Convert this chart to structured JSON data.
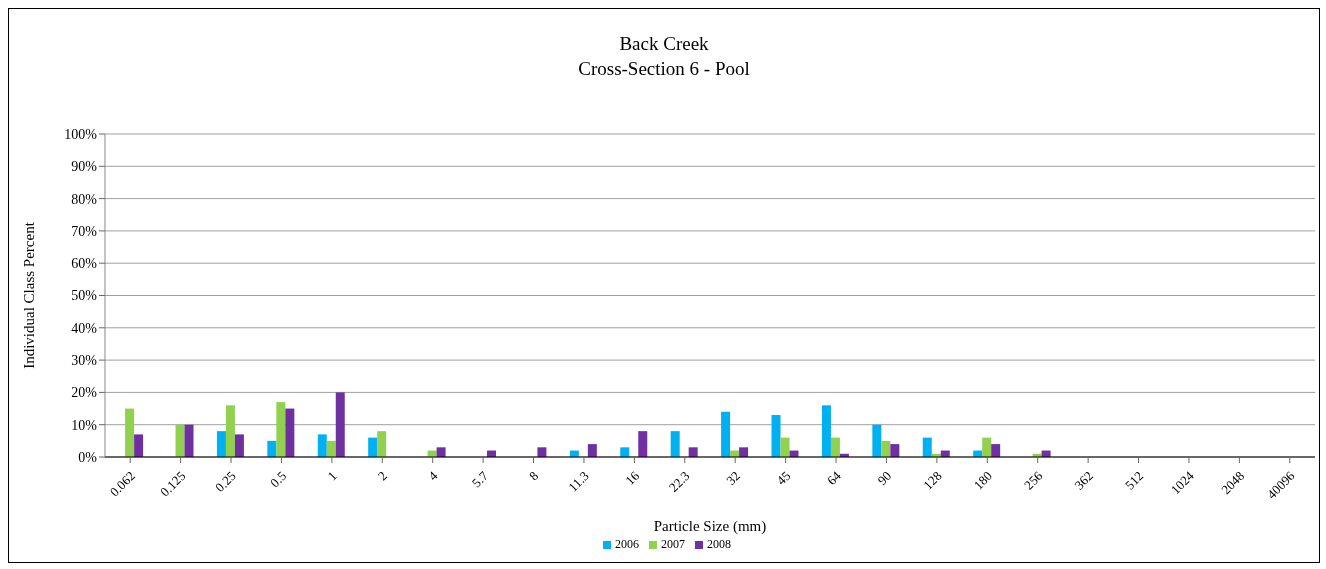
{
  "chart_data": {
    "type": "bar",
    "title": "Back Creek",
    "subtitle": "Cross-Section 6 - Pool",
    "xlabel": "Particle Size (mm)",
    "ylabel": "Individual Class Percent",
    "categories": [
      "0.062",
      "0.125",
      "0.25",
      "0.5",
      "1",
      "2",
      "4",
      "5.7",
      "8",
      "11.3",
      "16",
      "22.3",
      "32",
      "45",
      "64",
      "90",
      "128",
      "180",
      "256",
      "362",
      "512",
      "1024",
      "2048",
      "40096"
    ],
    "series": [
      {
        "name": "2006",
        "color": "#00b0f0",
        "values": [
          0,
          0,
          8,
          5,
          7,
          6,
          0,
          0,
          0,
          2,
          3,
          8,
          14,
          13,
          16,
          10,
          6,
          2,
          0,
          0,
          0,
          0,
          0,
          0
        ]
      },
      {
        "name": "2007",
        "color": "#92d050",
        "values": [
          15,
          10,
          16,
          17,
          5,
          8,
          2,
          0,
          0,
          0,
          0,
          0,
          2,
          6,
          6,
          5,
          1,
          6,
          1,
          0,
          0,
          0,
          0,
          0
        ]
      },
      {
        "name": "2008",
        "color": "#7030a0",
        "values": [
          7,
          10,
          7,
          15,
          20,
          0,
          3,
          2,
          3,
          4,
          8,
          3,
          3,
          2,
          1,
          4,
          2,
          4,
          2,
          0,
          0,
          0,
          0,
          0
        ]
      }
    ],
    "ylim": [
      0,
      100
    ],
    "yticks": [
      {
        "value": 0,
        "label": "0%"
      },
      {
        "value": 10,
        "label": "10%"
      },
      {
        "value": 20,
        "label": "20%"
      },
      {
        "value": 30,
        "label": "30%"
      },
      {
        "value": 40,
        "label": "40%"
      },
      {
        "value": 50,
        "label": "50%"
      },
      {
        "value": 60,
        "label": "60%"
      },
      {
        "value": 70,
        "label": "70%"
      },
      {
        "value": 80,
        "label": "80%"
      },
      {
        "value": 90,
        "label": "90%"
      },
      {
        "value": 100,
        "label": "100%"
      }
    ],
    "grid": "y",
    "legend": "bottom"
  }
}
